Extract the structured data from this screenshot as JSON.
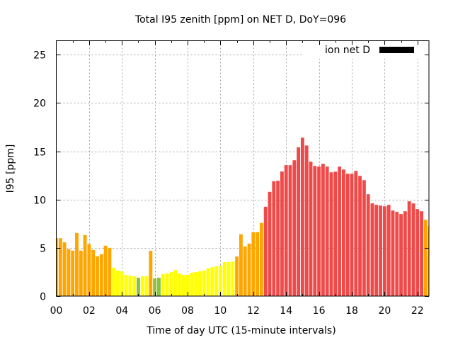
{
  "chart_data": {
    "type": "bar",
    "title": "Total I95 zenith [ppm] on NET D, DoY=096",
    "xlabel": "Time of day UTC (15-minute intervals)",
    "ylabel": "I95 [ppm]",
    "xlim": [
      0,
      22.7
    ],
    "ylim": [
      0,
      26.45
    ],
    "x_ticks": [
      0,
      2,
      4,
      6,
      8,
      10,
      12,
      14,
      16,
      18,
      20,
      22
    ],
    "x_tick_labels": [
      "00",
      "02",
      "04",
      "06",
      "08",
      "10",
      "12",
      "14",
      "16",
      "18",
      "20",
      "22"
    ],
    "y_ticks": [
      0,
      5,
      10,
      15,
      20,
      25
    ],
    "y_tick_labels": [
      "0",
      "5",
      "10",
      "15",
      "20",
      "25"
    ],
    "grid": true,
    "legend": {
      "label": "ion net D",
      "placement": "top-right",
      "color": "#000000"
    },
    "interval_hours": 0.25,
    "color_key": {
      "green": "#88c040",
      "yellow": "#ffff00",
      "orange": "#ffa500",
      "red": "#ef4a4a"
    },
    "series": [
      {
        "name": "ion net D",
        "values": [
          6.0,
          6.0,
          5.57,
          4.86,
          4.71,
          6.54,
          4.71,
          6.32,
          5.37,
          4.78,
          4.12,
          4.34,
          5.22,
          5.0,
          2.94,
          2.65,
          2.56,
          2.2,
          2.12,
          2.05,
          1.9,
          2.05,
          2.05,
          4.69,
          1.83,
          1.9,
          2.27,
          2.34,
          2.49,
          2.71,
          2.34,
          2.2,
          2.2,
          2.42,
          2.49,
          2.56,
          2.64,
          2.86,
          3.0,
          3.08,
          3.15,
          3.52,
          3.52,
          3.59,
          4.1,
          6.4,
          5.14,
          5.44,
          6.62,
          6.62,
          7.57,
          9.25,
          10.8,
          11.9,
          11.95,
          12.9,
          13.56,
          13.56,
          14.07,
          15.41,
          16.41,
          15.6,
          13.92,
          13.48,
          13.41,
          13.7,
          13.41,
          12.82,
          12.89,
          13.41,
          13.11,
          12.67,
          12.67,
          12.97,
          12.45,
          12.01,
          10.55,
          9.6,
          9.45,
          9.38,
          9.3,
          9.45,
          8.86,
          8.72,
          8.5,
          8.79,
          9.82,
          9.6,
          9.01,
          8.79,
          7.91,
          7.25
        ],
        "colors": [
          "orange",
          "orange",
          "orange",
          "orange",
          "orange",
          "orange",
          "orange",
          "orange",
          "orange",
          "orange",
          "orange",
          "orange",
          "orange",
          "orange",
          "yellow",
          "yellow",
          "yellow",
          "yellow",
          "yellow",
          "yellow",
          "green",
          "yellow",
          "yellow",
          "orange",
          "green",
          "green",
          "yellow",
          "yellow",
          "yellow",
          "yellow",
          "yellow",
          "yellow",
          "yellow",
          "yellow",
          "yellow",
          "yellow",
          "yellow",
          "yellow",
          "yellow",
          "yellow",
          "yellow",
          "yellow",
          "yellow",
          "yellow",
          "orange",
          "orange",
          "orange",
          "orange",
          "orange",
          "orange",
          "orange",
          "red",
          "red",
          "red",
          "red",
          "red",
          "red",
          "red",
          "red",
          "red",
          "red",
          "red",
          "red",
          "red",
          "red",
          "red",
          "red",
          "red",
          "red",
          "red",
          "red",
          "red",
          "red",
          "red",
          "red",
          "red",
          "red",
          "red",
          "red",
          "red",
          "red",
          "red",
          "red",
          "red",
          "red",
          "red",
          "red",
          "red",
          "red",
          "red",
          "orange",
          "orange"
        ]
      }
    ]
  }
}
